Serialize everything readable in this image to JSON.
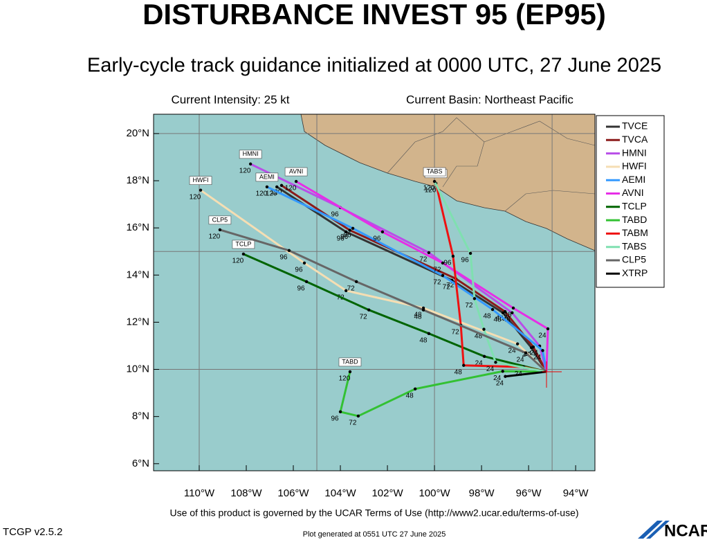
{
  "chart_data": {
    "type": "track",
    "title": "DISTURBANCE INVEST 95 (EP95)",
    "subtitle": "Early-cycle track guidance initialized at 0000 UTC, 27 June 2025",
    "intensity": "Current Intensity: 25 kt",
    "basin": "Current Basin: Northeast Pacific",
    "terms": "Use of this product is governed by the UCAR Terms of Use (http://www2.ucar.edu/terms-of-use)",
    "version": "TCGP v2.5.2",
    "generated": "Plot generated at 0551 UTC   27 June 2025",
    "logo": "NCAR",
    "xlim": [
      -111.94,
      -93.18
    ],
    "ylim": [
      5.7,
      20.82
    ],
    "xticks": [
      {
        "value": -110,
        "label": "110°W"
      },
      {
        "value": -108,
        "label": "108°W"
      },
      {
        "value": -106,
        "label": "106°W"
      },
      {
        "value": -104,
        "label": "104°W"
      },
      {
        "value": -102,
        "label": "102°W"
      },
      {
        "value": -100,
        "label": "100°W"
      },
      {
        "value": -98,
        "label": "98°W"
      },
      {
        "value": -96,
        "label": "96°W"
      },
      {
        "value": -94,
        "label": "94°W"
      }
    ],
    "yticks": [
      {
        "value": 6,
        "label": "6°N"
      },
      {
        "value": 8,
        "label": "8°N"
      },
      {
        "value": 10,
        "label": "10°N"
      },
      {
        "value": 12,
        "label": "12°N"
      },
      {
        "value": 14,
        "label": "14°N"
      },
      {
        "value": 16,
        "label": "16°N"
      },
      {
        "value": 18,
        "label": "18°N"
      },
      {
        "value": 20,
        "label": "20°N"
      }
    ],
    "grid_lon": [
      -110,
      -105,
      -100,
      -95
    ],
    "grid_lat": [
      10,
      15,
      20
    ],
    "lead_hours": [
      24,
      48,
      72,
      96,
      120
    ],
    "series": [
      {
        "name": "TVCE",
        "color": "#333333",
        "lon": [
          -95.24,
          -95.88,
          -97.09,
          -99.26,
          -103.76,
          -106.7
        ],
        "lat": [
          9.9,
          10.92,
          12.4,
          13.78,
          15.83,
          17.74
        ]
      },
      {
        "name": "TVCA",
        "color": "#8b1a1a",
        "lon": [
          -95.24,
          -95.8,
          -97.0,
          -99.1,
          -103.6,
          -106.5
        ],
        "lat": [
          9.9,
          10.95,
          12.45,
          13.85,
          15.9,
          17.8
        ]
      },
      {
        "name": "HMNI",
        "color": "#b84ee8",
        "name_box": true,
        "lon": [
          -95.24,
          -95.53,
          -96.7,
          -100.24,
          -104.0,
          -107.82
        ],
        "lat": [
          9.9,
          10.99,
          12.4,
          14.95,
          16.86,
          18.71
        ]
      },
      {
        "name": "HWFI",
        "color": "#f5deb3",
        "name_box": true,
        "lon": [
          -95.24,
          -96.47,
          -100.47,
          -103.76,
          -105.53,
          -109.94
        ],
        "lat": [
          9.9,
          11.08,
          12.6,
          13.34,
          14.51,
          17.6
        ]
      },
      {
        "name": "AEMI",
        "color": "#3399ff",
        "name_box": true,
        "lon": [
          -95.24,
          -95.4,
          -97.53,
          -99.65,
          -103.47,
          -107.12
        ],
        "lat": [
          9.9,
          10.8,
          12.54,
          13.98,
          15.98,
          17.74
        ]
      },
      {
        "name": "AVNI",
        "color": "#e62ee6",
        "name_box": true,
        "lon": [
          -95.24,
          -95.18,
          -96.65,
          -99.65,
          -102.21,
          -105.88
        ],
        "lat": [
          9.9,
          11.72,
          12.6,
          14.51,
          15.83,
          17.97
        ]
      },
      {
        "name": "TCLP",
        "color": "#006400",
        "name_box": true,
        "lon": [
          -95.24,
          -97.88,
          -100.24,
          -102.79,
          -105.44,
          -108.12
        ],
        "lat": [
          9.9,
          10.55,
          11.52,
          12.52,
          13.72,
          14.89
        ]
      },
      {
        "name": "TABD",
        "color": "#33c133",
        "name_box": true,
        "lon": [
          -95.24,
          -97.1,
          -100.82,
          -103.24,
          -104.0,
          -103.59
        ],
        "lat": [
          9.9,
          9.92,
          9.17,
          8.02,
          8.2,
          9.9
        ]
      },
      {
        "name": "TABM",
        "color": "#ee1111",
        "name_box": true,
        "lon": [
          -95.24,
          -96.2,
          -98.76,
          -98.88,
          -99.21,
          -99.94
        ],
        "lat": [
          9.9,
          10.1,
          10.17,
          11.87,
          14.8,
          17.89
        ]
      },
      {
        "name": "TABS",
        "color": "#7fe0b0",
        "name_box": true,
        "lon": [
          -95.24,
          -97.4,
          -97.9,
          -98.3,
          -98.47,
          -100.0
        ],
        "lat": [
          9.9,
          10.3,
          11.7,
          13.0,
          14.92,
          17.97
        ]
      },
      {
        "name": "CLP5",
        "color": "#666666",
        "name_box": true,
        "lon": [
          -95.24,
          -96.12,
          -100.47,
          -103.32,
          -106.18,
          -109.12
        ],
        "lat": [
          9.9,
          10.7,
          12.52,
          13.72,
          15.04,
          15.92
        ]
      },
      {
        "name": "XTRP",
        "color": "#000000",
        "lon": [
          -95.24,
          -96.99
        ],
        "lat": [
          9.9,
          9.7
        ]
      }
    ]
  }
}
